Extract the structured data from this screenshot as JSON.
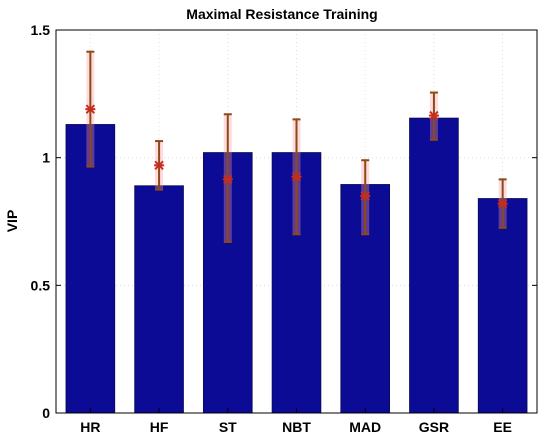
{
  "chart_data": {
    "type": "bar",
    "title": "Maximal Resistance Training",
    "xlabel": "",
    "ylabel": "VIP",
    "categories": [
      "HR",
      "HF",
      "ST",
      "NBT",
      "MAD",
      "GSR",
      "EE"
    ],
    "values": [
      1.13,
      0.89,
      1.02,
      1.02,
      0.895,
      1.155,
      0.84
    ],
    "error_center": [
      1.19,
      0.97,
      0.915,
      0.925,
      0.85,
      1.165,
      0.82
    ],
    "error_low": [
      0.965,
      0.875,
      0.67,
      0.7,
      0.7,
      1.07,
      0.725
    ],
    "error_high": [
      1.415,
      1.065,
      1.17,
      1.15,
      0.99,
      1.255,
      0.915
    ],
    "ylim": [
      0,
      1.5
    ],
    "yticks": [
      "0",
      "0.5",
      "1",
      "1.5"
    ],
    "grid": true,
    "colors": {
      "bar": "#0b0b95",
      "error_bar": "#8b4a1a",
      "marker": "#cc2a1e"
    }
  }
}
